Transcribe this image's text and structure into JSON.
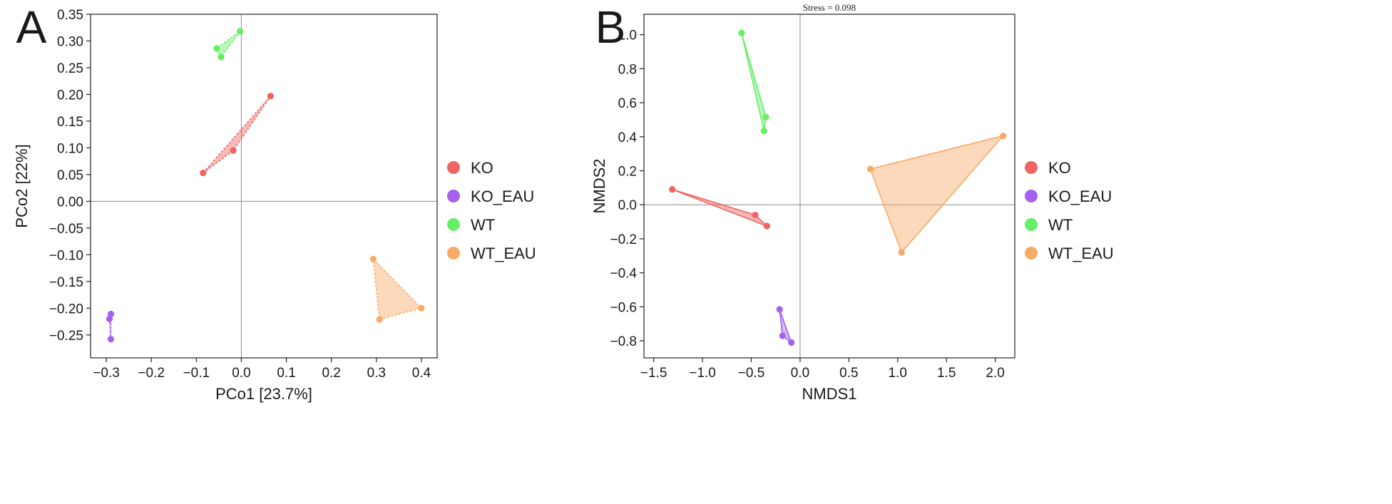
{
  "chart_data": [
    {
      "panel_label": "A",
      "type": "scatter",
      "xlabel": "PCo1 [23.7%]",
      "ylabel": "PCo2 [22%]",
      "xlim": [
        -0.335,
        0.435
      ],
      "ylim": [
        -0.293,
        0.35
      ],
      "xticks": [
        -0.3,
        -0.2,
        -0.1,
        0.0,
        0.1,
        0.2,
        0.3,
        0.4
      ],
      "xtick_labels": [
        "−0.3",
        "−0.2",
        "−0.1",
        "0.0",
        "0.1",
        "0.2",
        "0.3",
        "0.4"
      ],
      "yticks": [
        -0.25,
        -0.2,
        -0.15,
        -0.1,
        -0.05,
        0.0,
        0.05,
        0.1,
        0.15,
        0.2,
        0.25,
        0.3,
        0.35
      ],
      "ytick_labels": [
        "−0.25",
        "−0.20",
        "−0.15",
        "−0.10",
        "−0.05",
        "0.00",
        "0.05",
        "0.10",
        "0.15",
        "0.20",
        "0.25",
        "0.30",
        "0.35"
      ],
      "hull_style": "dashed",
      "series": [
        {
          "name": "KO",
          "color": "#f06464",
          "points": [
            [
              -0.085,
              0.053
            ],
            [
              -0.018,
              0.095
            ],
            [
              0.065,
              0.197
            ]
          ]
        },
        {
          "name": "KO_EAU",
          "color": "#a561ee",
          "points": [
            [
              -0.29,
              -0.211
            ],
            [
              -0.293,
              -0.22
            ],
            [
              -0.29,
              -0.258
            ]
          ]
        },
        {
          "name": "WT",
          "color": "#66ee66",
          "points": [
            [
              -0.055,
              0.286
            ],
            [
              -0.045,
              0.27
            ],
            [
              -0.003,
              0.318
            ]
          ]
        },
        {
          "name": "WT_EAU",
          "color": "#f8aa66",
          "points": [
            [
              0.293,
              -0.108
            ],
            [
              0.4,
              -0.2
            ],
            [
              0.307,
              -0.221
            ]
          ]
        }
      ],
      "legend": [
        "KO",
        "KO_EAU",
        "WT",
        "WT_EAU"
      ]
    },
    {
      "panel_label": "B",
      "type": "scatter",
      "annotation": "Stress = 0.098",
      "xlabel": "NMDS1",
      "ylabel": "NMDS2",
      "xlim": [
        -1.6,
        2.2
      ],
      "ylim": [
        -0.9,
        1.12
      ],
      "xticks": [
        -1.5,
        -1.0,
        -0.5,
        0.0,
        0.5,
        1.0,
        1.5,
        2.0
      ],
      "xtick_labels": [
        "−1.5",
        "−1.0",
        "−0.5",
        "0.0",
        "0.5",
        "1.0",
        "1.5",
        "2.0"
      ],
      "yticks": [
        -0.8,
        -0.6,
        -0.4,
        -0.2,
        0.0,
        0.2,
        0.4,
        0.6,
        0.8,
        1.0
      ],
      "ytick_labels": [
        "−0.8",
        "−0.6",
        "−0.4",
        "−0.2",
        "0.0",
        "0.2",
        "0.4",
        "0.6",
        "0.8",
        "1.0"
      ],
      "hull_style": "solid",
      "series": [
        {
          "name": "KO",
          "color": "#f06464",
          "points": [
            [
              -1.31,
              0.09
            ],
            [
              -0.46,
              -0.06
            ],
            [
              -0.34,
              -0.125
            ]
          ]
        },
        {
          "name": "KO_EAU",
          "color": "#a561ee",
          "points": [
            [
              -0.21,
              -0.615
            ],
            [
              -0.18,
              -0.77
            ],
            [
              -0.09,
              -0.81
            ]
          ]
        },
        {
          "name": "WT",
          "color": "#66ee66",
          "points": [
            [
              -0.6,
              1.01
            ],
            [
              -0.35,
              0.515
            ],
            [
              -0.37,
              0.435
            ]
          ]
        },
        {
          "name": "WT_EAU",
          "color": "#f8aa66",
          "points": [
            [
              0.72,
              0.21
            ],
            [
              2.08,
              0.405
            ],
            [
              1.04,
              -0.28
            ]
          ]
        }
      ],
      "legend": [
        "KO",
        "KO_EAU",
        "WT",
        "WT_EAU"
      ]
    }
  ]
}
